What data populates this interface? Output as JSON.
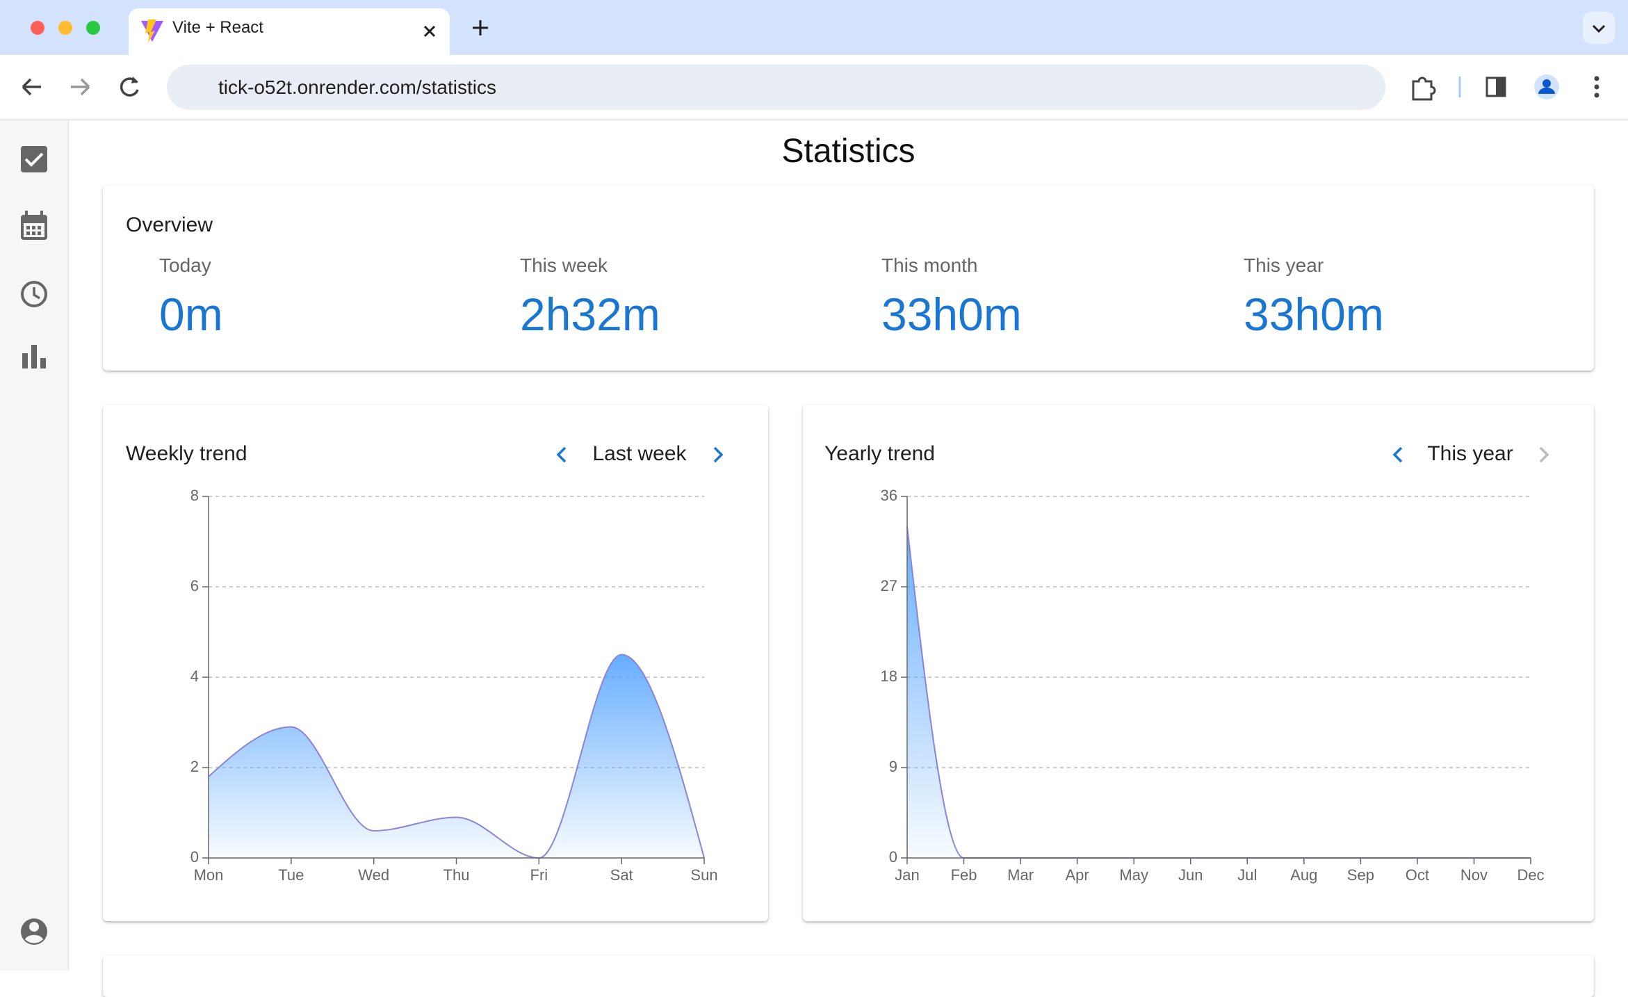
{
  "browser": {
    "tab_title": "Vite + React",
    "url": "tick-o52t.onrender.com/statistics"
  },
  "page": {
    "title": "Statistics",
    "overview": {
      "title": "Overview",
      "stats": [
        {
          "label": "Today",
          "value": "0m"
        },
        {
          "label": "This week",
          "value": "2h32m"
        },
        {
          "label": "This month",
          "value": "33h0m"
        },
        {
          "label": "This year",
          "value": "33h0m"
        }
      ]
    }
  },
  "chart_data": [
    {
      "type": "area",
      "title": "Weekly trend",
      "period": "Last week",
      "categories": [
        "Mon",
        "Tue",
        "Wed",
        "Thu",
        "Fri",
        "Sat",
        "Sun"
      ],
      "values": [
        1.8,
        2.9,
        0.6,
        0.9,
        0,
        4.5,
        0
      ],
      "color": "#8884d8",
      "fill": "#4d9fff",
      "ylim": [
        0,
        8
      ],
      "yticks": [
        0,
        2,
        4,
        6,
        8
      ],
      "grid": true
    },
    {
      "type": "area",
      "title": "Yearly trend",
      "period": "This year",
      "categories": [
        "Jan",
        "Feb",
        "Mar",
        "Apr",
        "May",
        "Jun",
        "Jul",
        "Aug",
        "Sep",
        "Oct",
        "Nov",
        "Dec"
      ],
      "values": [
        33,
        0,
        0,
        0,
        0,
        0,
        0,
        0,
        0,
        0,
        0,
        0
      ],
      "color": "#8884d8",
      "fill": "#4d9fff",
      "ylim": [
        0,
        36
      ],
      "yticks": [
        0,
        9,
        18,
        27,
        36
      ],
      "grid": true
    }
  ]
}
